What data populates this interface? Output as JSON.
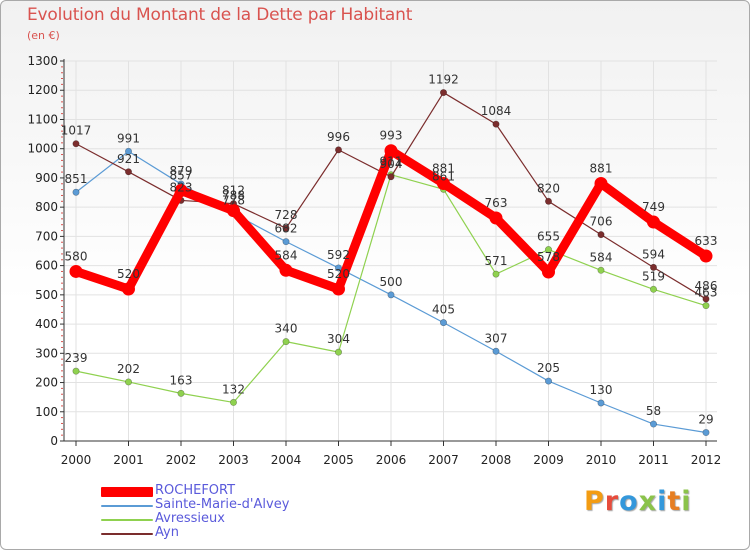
{
  "header": {
    "title": "Evolution du Montant de la Dette par Habitant",
    "subtitle": "(en €)"
  },
  "logo": {
    "text": "Proxiti",
    "letter_colors": [
      "#f39c12",
      "#e74c3c",
      "#3498db",
      "#8bc34a",
      "#3498db",
      "#e67e22",
      "#8bc34a"
    ]
  },
  "colors": {
    "title": "#d9534f",
    "legend_text": "#5a5adb",
    "grid": "#e2e2e2",
    "axis": "#333333",
    "tick_text": "#222222",
    "data_label": "#333333",
    "accent_ticks": "#d9534f"
  },
  "chart_data": {
    "type": "line",
    "title": "Evolution du Montant de la Dette par Habitant",
    "ylabel": "(en €)",
    "xlabel": "",
    "categories": [
      "2000",
      "2001",
      "2002",
      "2003",
      "2004",
      "2005",
      "2006",
      "2007",
      "2008",
      "2009",
      "2010",
      "2011",
      "2012"
    ],
    "ylim": [
      0,
      1300
    ],
    "yticks": [
      0,
      100,
      200,
      300,
      400,
      500,
      600,
      700,
      800,
      900,
      1000,
      1100,
      1200,
      1300
    ],
    "grid": true,
    "legend_position": "bottom-left",
    "series": [
      {
        "name": "ROCHEFORT",
        "color": "#ff0000",
        "thick": true,
        "values": [
          580,
          520,
          857,
          788,
          584,
          520,
          993,
          881,
          763,
          578,
          881,
          749,
          633
        ],
        "labels": [
          "580",
          "520",
          "857",
          "788",
          "584",
          "520",
          "993",
          "881",
          "763",
          "578",
          "881",
          "749",
          "633"
        ]
      },
      {
        "name": "Sainte-Marie-d'Alvey",
        "color": "#5b9bd5",
        "thick": false,
        "values": [
          851,
          991,
          879,
          778,
          682,
          592,
          500,
          405,
          307,
          205,
          130,
          58,
          29
        ],
        "labels": [
          "851",
          "991",
          "879",
          "778",
          "682",
          "592",
          "500",
          "405",
          "307",
          "205",
          "130",
          "58",
          "29"
        ]
      },
      {
        "name": "Avressieux",
        "color": "#8fd14f",
        "thick": false,
        "values": [
          239,
          202,
          163,
          132,
          340,
          304,
          911,
          861,
          571,
          655,
          584,
          519,
          463
        ],
        "labels": [
          "239",
          "202",
          "163",
          "132",
          "340",
          "304",
          "911",
          "861",
          "571",
          "655",
          "584",
          "519",
          "463"
        ]
      },
      {
        "name": "Ayn",
        "color": "#7b2d2d",
        "thick": false,
        "values": [
          1017,
          921,
          823,
          812,
          728,
          996,
          904,
          1192,
          1084,
          820,
          706,
          594,
          486
        ],
        "labels": [
          "1017",
          "921",
          "823",
          "812",
          "728",
          "996",
          "904",
          "1192",
          "1084",
          "820",
          "706",
          "594",
          "486"
        ]
      }
    ]
  }
}
